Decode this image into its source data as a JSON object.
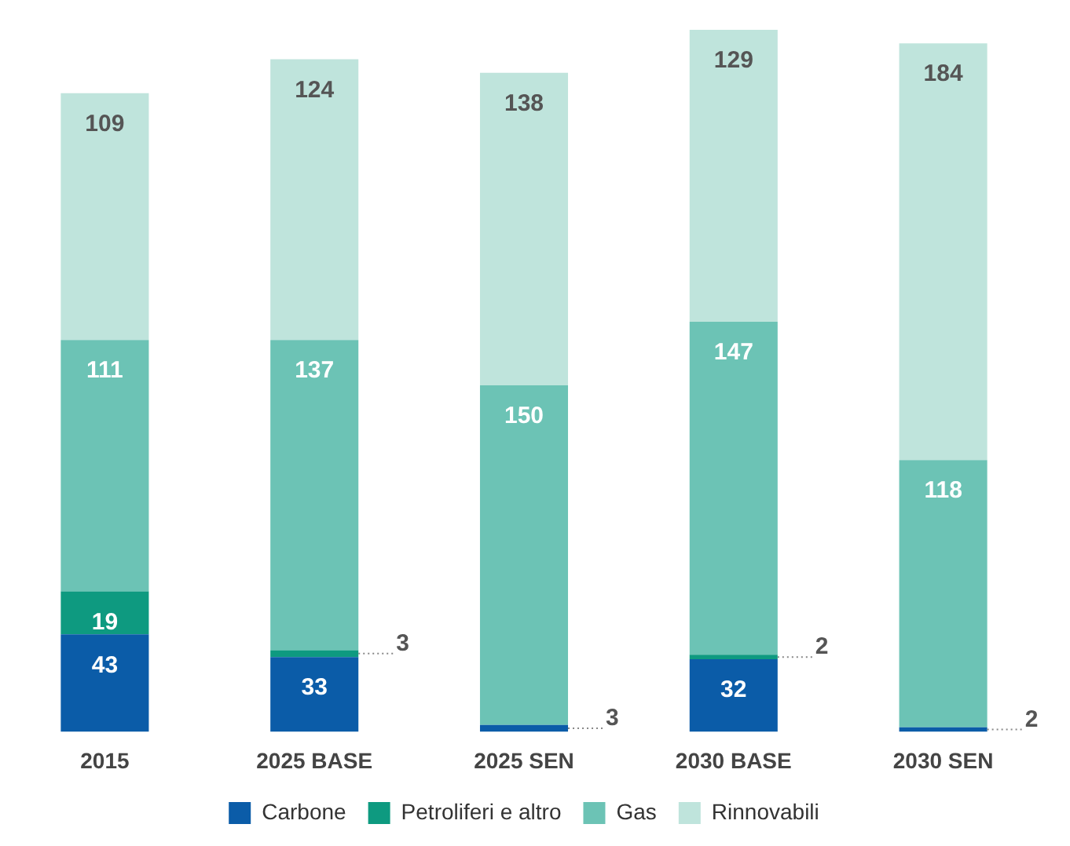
{
  "chart_data": {
    "type": "bar",
    "stacked": true,
    "data_labels": true,
    "legend": "bottom",
    "categories": [
      "2015",
      "2025 BASE",
      "2025 SEN",
      "2030 BASE",
      "2030 SEN"
    ],
    "series": [
      {
        "name": "Carbone",
        "color": "#0b5ca8",
        "values": [
          43,
          33,
          3,
          32,
          2
        ]
      },
      {
        "name": "Petroliferi e altro",
        "color": "#0e9a80",
        "values": [
          19,
          3,
          null,
          2,
          null
        ]
      },
      {
        "name": "Gas",
        "color": "#6cc3b5",
        "values": [
          111,
          137,
          150,
          147,
          118
        ]
      },
      {
        "name": "Rinnovabili",
        "color": "#bfe4dc",
        "values": [
          109,
          124,
          138,
          129,
          184
        ]
      }
    ]
  }
}
